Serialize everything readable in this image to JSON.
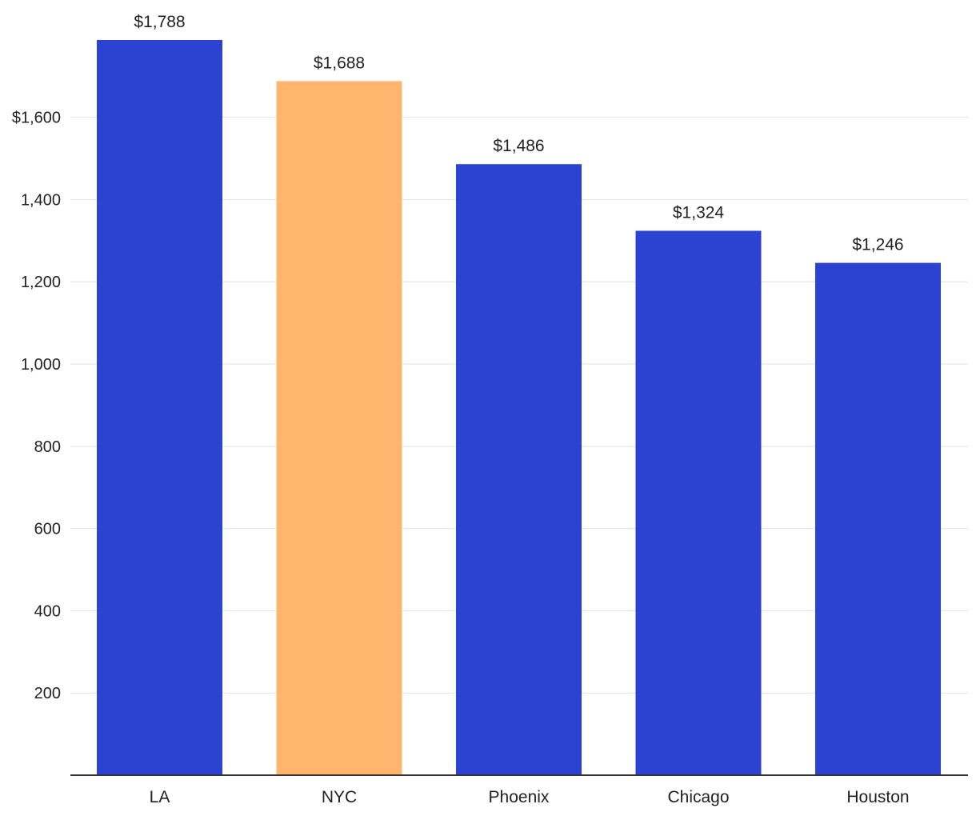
{
  "chart_data": {
    "type": "bar",
    "title": "",
    "xlabel": "",
    "ylabel": "",
    "categories": [
      "LA",
      "NYC",
      "Phoenix",
      "Chicago",
      "Houston"
    ],
    "values": [
      1788,
      1688,
      1486,
      1324,
      1246
    ],
    "value_labels": [
      "$1,788",
      "$1,688",
      "$1,486",
      "$1,324",
      "$1,246"
    ],
    "highlight_category": "NYC",
    "colors": {
      "default": "#2c43d1",
      "highlight": "#ffb56d"
    },
    "ylim": [
      0,
      1788
    ],
    "y_ticks": [
      200,
      400,
      600,
      800,
      1000,
      1200,
      1400,
      1600
    ],
    "y_tick_labels": [
      "200",
      "400",
      "600",
      "800",
      "1,000",
      "1,200",
      "1,400",
      "$1,600"
    ],
    "grid": true
  }
}
